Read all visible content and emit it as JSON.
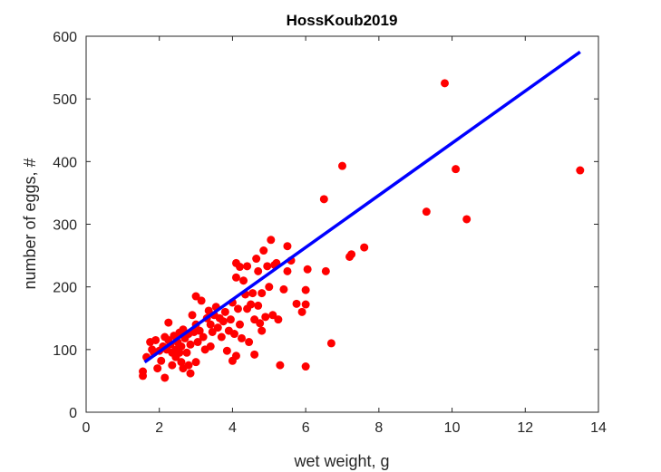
{
  "chart_data": {
    "type": "scatter",
    "title": "HossKoub2019",
    "xlabel": "wet weight, g",
    "ylabel": "number of eggs, #",
    "xlim": [
      0,
      14
    ],
    "ylim": [
      0,
      600
    ],
    "xticks": [
      0,
      2,
      4,
      6,
      8,
      10,
      12,
      14
    ],
    "yticks": [
      0,
      100,
      200,
      300,
      400,
      500,
      600
    ],
    "grid": false,
    "box": true,
    "colors": {
      "points": "#ff0000",
      "fit_line": "#0000ff",
      "axes": "#262626"
    },
    "fit_line": {
      "x": [
        1.6,
        13.5
      ],
      "y": [
        80,
        575
      ]
    },
    "points": [
      {
        "x": 1.55,
        "y": 58
      },
      {
        "x": 1.55,
        "y": 65
      },
      {
        "x": 1.65,
        "y": 88
      },
      {
        "x": 1.75,
        "y": 112
      },
      {
        "x": 1.8,
        "y": 100
      },
      {
        "x": 1.85,
        "y": 95
      },
      {
        "x": 1.9,
        "y": 115
      },
      {
        "x": 1.95,
        "y": 70
      },
      {
        "x": 2.0,
        "y": 98
      },
      {
        "x": 2.05,
        "y": 82
      },
      {
        "x": 2.1,
        "y": 105
      },
      {
        "x": 2.15,
        "y": 120
      },
      {
        "x": 2.15,
        "y": 55
      },
      {
        "x": 2.2,
        "y": 100
      },
      {
        "x": 2.25,
        "y": 143
      },
      {
        "x": 2.25,
        "y": 115
      },
      {
        "x": 2.3,
        "y": 108
      },
      {
        "x": 2.35,
        "y": 95
      },
      {
        "x": 2.35,
        "y": 75
      },
      {
        "x": 2.4,
        "y": 122
      },
      {
        "x": 2.45,
        "y": 100
      },
      {
        "x": 2.45,
        "y": 88
      },
      {
        "x": 2.5,
        "y": 112
      },
      {
        "x": 2.55,
        "y": 127
      },
      {
        "x": 2.55,
        "y": 95
      },
      {
        "x": 2.6,
        "y": 80
      },
      {
        "x": 2.6,
        "y": 105
      },
      {
        "x": 2.65,
        "y": 132
      },
      {
        "x": 2.65,
        "y": 70
      },
      {
        "x": 2.7,
        "y": 118
      },
      {
        "x": 2.75,
        "y": 95
      },
      {
        "x": 2.8,
        "y": 75
      },
      {
        "x": 2.8,
        "y": 125
      },
      {
        "x": 2.85,
        "y": 62
      },
      {
        "x": 2.85,
        "y": 108
      },
      {
        "x": 2.9,
        "y": 155
      },
      {
        "x": 2.95,
        "y": 128
      },
      {
        "x": 3.0,
        "y": 185
      },
      {
        "x": 3.0,
        "y": 140
      },
      {
        "x": 3.0,
        "y": 80
      },
      {
        "x": 3.05,
        "y": 112
      },
      {
        "x": 3.1,
        "y": 130
      },
      {
        "x": 3.15,
        "y": 178
      },
      {
        "x": 3.2,
        "y": 120
      },
      {
        "x": 3.25,
        "y": 100
      },
      {
        "x": 3.3,
        "y": 150
      },
      {
        "x": 3.35,
        "y": 162
      },
      {
        "x": 3.4,
        "y": 140
      },
      {
        "x": 3.4,
        "y": 105
      },
      {
        "x": 3.45,
        "y": 128
      },
      {
        "x": 3.5,
        "y": 155
      },
      {
        "x": 3.55,
        "y": 168
      },
      {
        "x": 3.6,
        "y": 135
      },
      {
        "x": 3.65,
        "y": 150
      },
      {
        "x": 3.7,
        "y": 120
      },
      {
        "x": 3.75,
        "y": 145
      },
      {
        "x": 3.8,
        "y": 160
      },
      {
        "x": 3.85,
        "y": 98
      },
      {
        "x": 3.9,
        "y": 130
      },
      {
        "x": 3.95,
        "y": 148
      },
      {
        "x": 4.0,
        "y": 175
      },
      {
        "x": 4.0,
        "y": 82
      },
      {
        "x": 4.05,
        "y": 125
      },
      {
        "x": 4.1,
        "y": 238
      },
      {
        "x": 4.1,
        "y": 215
      },
      {
        "x": 4.1,
        "y": 90
      },
      {
        "x": 4.15,
        "y": 165
      },
      {
        "x": 4.2,
        "y": 232
      },
      {
        "x": 4.2,
        "y": 140
      },
      {
        "x": 4.25,
        "y": 118
      },
      {
        "x": 4.3,
        "y": 210
      },
      {
        "x": 4.35,
        "y": 188
      },
      {
        "x": 4.4,
        "y": 165
      },
      {
        "x": 4.4,
        "y": 233
      },
      {
        "x": 4.45,
        "y": 112
      },
      {
        "x": 4.5,
        "y": 172
      },
      {
        "x": 4.55,
        "y": 190
      },
      {
        "x": 4.6,
        "y": 148
      },
      {
        "x": 4.6,
        "y": 92
      },
      {
        "x": 4.65,
        "y": 245
      },
      {
        "x": 4.7,
        "y": 225
      },
      {
        "x": 4.7,
        "y": 170
      },
      {
        "x": 4.75,
        "y": 142
      },
      {
        "x": 4.8,
        "y": 190
      },
      {
        "x": 4.8,
        "y": 130
      },
      {
        "x": 4.85,
        "y": 258
      },
      {
        "x": 4.9,
        "y": 152
      },
      {
        "x": 4.95,
        "y": 233
      },
      {
        "x": 5.0,
        "y": 200
      },
      {
        "x": 5.05,
        "y": 275
      },
      {
        "x": 5.1,
        "y": 155
      },
      {
        "x": 5.15,
        "y": 235
      },
      {
        "x": 5.2,
        "y": 238
      },
      {
        "x": 5.25,
        "y": 148
      },
      {
        "x": 5.3,
        "y": 75
      },
      {
        "x": 5.4,
        "y": 196
      },
      {
        "x": 5.5,
        "y": 265
      },
      {
        "x": 5.5,
        "y": 225
      },
      {
        "x": 5.6,
        "y": 242
      },
      {
        "x": 5.75,
        "y": 173
      },
      {
        "x": 5.9,
        "y": 160
      },
      {
        "x": 6.0,
        "y": 73
      },
      {
        "x": 6.0,
        "y": 195
      },
      {
        "x": 6.05,
        "y": 228
      },
      {
        "x": 6.0,
        "y": 172
      },
      {
        "x": 6.5,
        "y": 340
      },
      {
        "x": 6.55,
        "y": 225
      },
      {
        "x": 6.7,
        "y": 110
      },
      {
        "x": 7.0,
        "y": 393
      },
      {
        "x": 7.2,
        "y": 248
      },
      {
        "x": 7.25,
        "y": 252
      },
      {
        "x": 7.6,
        "y": 263
      },
      {
        "x": 9.3,
        "y": 320
      },
      {
        "x": 9.8,
        "y": 525
      },
      {
        "x": 10.1,
        "y": 388
      },
      {
        "x": 10.4,
        "y": 308
      },
      {
        "x": 13.5,
        "y": 386
      }
    ]
  }
}
